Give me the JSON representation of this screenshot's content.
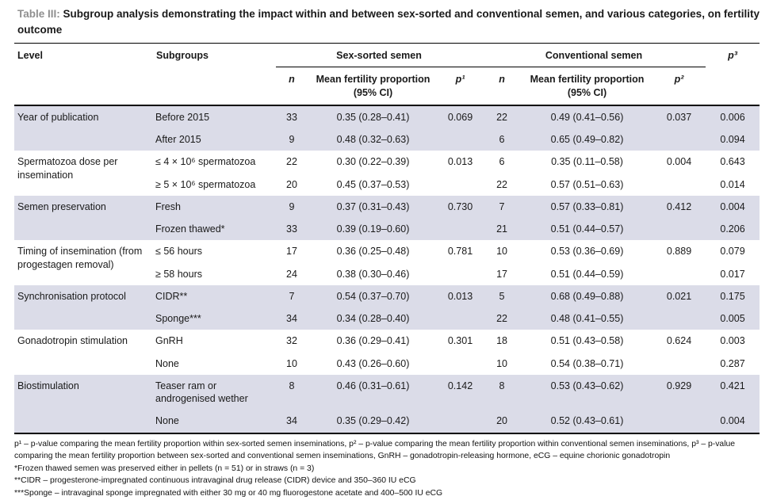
{
  "title": {
    "label": "Table III:",
    "text": " Subgroup analysis demonstrating the impact within and between sex-sorted and conventional semen, and various categories, on fertility outcome"
  },
  "table": {
    "header": {
      "level": "Level",
      "subgroups": "Subgroups",
      "sex_sorted_group": "Sex-sorted semen",
      "conventional_group": "Conventional semen",
      "n": "n",
      "mean_fertility": "Mean fertility proportion (95% CI)",
      "p1": "p¹",
      "p2": "p²",
      "p3": "p³"
    },
    "groups": [
      {
        "level": "Year of publication",
        "rows": [
          {
            "subgroup": "Before 2015",
            "ss_n": "33",
            "ss_mean": "0.35 (0.28–0.41)",
            "ss_p": "0.069",
            "cv_n": "22",
            "cv_mean": "0.49 (0.41–0.56)",
            "cv_p": "0.037",
            "p3": "0.006"
          },
          {
            "subgroup": "After 2015",
            "ss_n": "9",
            "ss_mean": "0.48 (0.32–0.63)",
            "ss_p": "",
            "cv_n": "6",
            "cv_mean": "0.65 (0.49–0.82)",
            "cv_p": "",
            "p3": "0.094"
          }
        ]
      },
      {
        "level": "Spermatozoa dose per insemination",
        "rows": [
          {
            "subgroup": "≤ 4 × 10⁶ spermatozoa",
            "ss_n": "22",
            "ss_mean": "0.30 (0.22–0.39)",
            "ss_p": "0.013",
            "cv_n": "6",
            "cv_mean": "0.35 (0.11–0.58)",
            "cv_p": "0.004",
            "p3": "0.643"
          },
          {
            "subgroup": "≥ 5 × 10⁶ spermatozoa",
            "ss_n": "20",
            "ss_mean": "0.45 (0.37–0.53)",
            "ss_p": "",
            "cv_n": "22",
            "cv_mean": "0.57 (0.51–0.63)",
            "cv_p": "",
            "p3": "0.014"
          }
        ]
      },
      {
        "level": "Semen preservation",
        "rows": [
          {
            "subgroup": "Fresh",
            "ss_n": "9",
            "ss_mean": "0.37 (0.31–0.43)",
            "ss_p": "0.730",
            "cv_n": "7",
            "cv_mean": "0.57 (0.33–0.81)",
            "cv_p": "0.412",
            "p3": "0.004"
          },
          {
            "subgroup": "Frozen thawed*",
            "ss_n": "33",
            "ss_mean": "0.39 (0.19–0.60)",
            "ss_p": "",
            "cv_n": "21",
            "cv_mean": "0.51 (0.44–0.57)",
            "cv_p": "",
            "p3": "0.206"
          }
        ]
      },
      {
        "level": "Timing of insemination (from progestagen removal)",
        "rows": [
          {
            "subgroup": "≤ 56 hours",
            "ss_n": "17",
            "ss_mean": "0.36 (0.25–0.48)",
            "ss_p": "0.781",
            "cv_n": "10",
            "cv_mean": "0.53 (0.36–0.69)",
            "cv_p": "0.889",
            "p3": "0.079"
          },
          {
            "subgroup": "≥ 58 hours",
            "ss_n": "24",
            "ss_mean": "0.38 (0.30–0.46)",
            "ss_p": "",
            "cv_n": "17",
            "cv_mean": "0.51 (0.44–0.59)",
            "cv_p": "",
            "p3": "0.017"
          }
        ]
      },
      {
        "level": "Synchronisation protocol",
        "rows": [
          {
            "subgroup": "CIDR**",
            "ss_n": "7",
            "ss_mean": "0.54 (0.37–0.70)",
            "ss_p": "0.013",
            "cv_n": "5",
            "cv_mean": "0.68 (0.49–0.88)",
            "cv_p": "0.021",
            "p3": "0.175"
          },
          {
            "subgroup": "Sponge***",
            "ss_n": "34",
            "ss_mean": "0.34 (0.28–0.40)",
            "ss_p": "",
            "cv_n": "22",
            "cv_mean": "0.48 (0.41–0.55)",
            "cv_p": "",
            "p3": "0.005"
          }
        ]
      },
      {
        "level": "Gonadotropin stimulation",
        "rows": [
          {
            "subgroup": "GnRH",
            "ss_n": "32",
            "ss_mean": "0.36 (0.29–0.41)",
            "ss_p": "0.301",
            "cv_n": "18",
            "cv_mean": "0.51 (0.43–0.58)",
            "cv_p": "0.624",
            "p3": "0.003"
          },
          {
            "subgroup": "None",
            "ss_n": "10",
            "ss_mean": "0.43 (0.26–0.60)",
            "ss_p": "",
            "cv_n": "10",
            "cv_mean": "0.54 (0.38–0.71)",
            "cv_p": "",
            "p3": "0.287"
          }
        ]
      },
      {
        "level": "Biostimulation",
        "rows": [
          {
            "subgroup": "Teaser ram or androgenised wether",
            "ss_n": "8",
            "ss_mean": "0.46 (0.31–0.61)",
            "ss_p": "0.142",
            "cv_n": "8",
            "cv_mean": "0.53 (0.43–0.62)",
            "cv_p": "0.929",
            "p3": "0.421"
          },
          {
            "subgroup": "None",
            "ss_n": "34",
            "ss_mean": "0.35 (0.29–0.42)",
            "ss_p": "",
            "cv_n": "20",
            "cv_mean": "0.52 (0.43–0.61)",
            "cv_p": "",
            "p3": "0.004"
          }
        ]
      }
    ]
  },
  "footnotes": [
    "p¹ – p-value comparing the mean fertility proportion within sex-sorted semen inseminations, p² – p-value comparing the mean fertility proportion within conventional semen inseminations, p³ – p-value comparing the mean fertility proportion between sex-sorted and conventional semen inseminations, GnRH – gonadotropin-releasing hormone, eCG – equine chorionic gonadotropin",
    "*Frozen thawed semen was preserved either in pellets (n = 51) or in straws (n = 3)",
    "**CIDR – progesterone-impregnated continuous intravaginal drug release (CIDR) device and 350–360 IU eCG",
    "***Sponge – intravaginal sponge impregnated with either 30 mg or 40 mg fluorogestone acetate and 400–500 IU eCG"
  ]
}
